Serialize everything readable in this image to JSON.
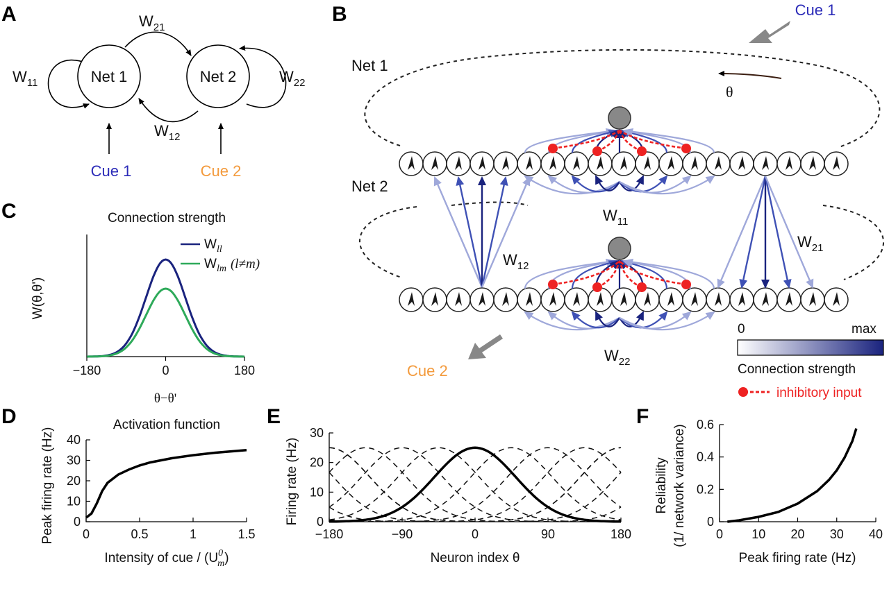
{
  "panels": {
    "A": {
      "letter": "A",
      "net1": "Net 1",
      "net2": "Net 2",
      "w11": "W11",
      "w21": "W21",
      "w12": "W12",
      "w22": "W22",
      "cue1": "Cue 1",
      "cue2": "Cue 2"
    },
    "B": {
      "letter": "B",
      "net1": "Net 1",
      "net2": "Net 2",
      "theta": "θ",
      "cue1": "Cue 1",
      "cue2": "Cue 2",
      "w11": "W11",
      "w12": "W12",
      "w21": "W21",
      "w22": "W22",
      "colorbar_min": "0",
      "colorbar_max": "max",
      "colorbar_label": "Connection strength",
      "inhibitory_label": "inhibitory input"
    },
    "C": {
      "letter": "C",
      "title": "Connection strength",
      "ylabel": "W(θ,θ')",
      "xlabel": "θ−θ'",
      "legend_ll": "W",
      "legend_ll_sub": "ll",
      "legend_lm": "W",
      "legend_lm_sub": "lm",
      "legend_lm_cond": "(l≠m)"
    },
    "D": {
      "letter": "D"
    },
    "E": {
      "letter": "E"
    },
    "F": {
      "letter": "F"
    }
  },
  "colors": {
    "cue1": "#2b2bb8",
    "cue2": "#f39a3c",
    "strong": "#1a237e",
    "weak": "#9fa8da",
    "inhibitory": "#ee2222",
    "green": "#2eaa5a"
  },
  "chart_data": [
    {
      "id": "C",
      "type": "line",
      "title": "Connection strength",
      "xlabel": "θ−θ'",
      "ylabel": "W(θ,θ')",
      "xlim": [
        -180,
        180
      ],
      "xticks": [
        "−180",
        "0",
        "180"
      ],
      "series": [
        {
          "name": "Wll",
          "amplitude": 1.0,
          "width_deg": 45,
          "color": "#1a237e"
        },
        {
          "name": "Wlm (l≠m)",
          "amplitude": 0.7,
          "width_deg": 45,
          "color": "#2eaa5a"
        }
      ]
    },
    {
      "id": "D",
      "type": "line",
      "title": "Activation function",
      "xlabel": "Intensity of cue / (U",
      "xlabel_sup": "0",
      "xlabel_sub": "m",
      "xlabel_end": ")",
      "ylabel": "Peak firing rate  (Hz)",
      "xlim": [
        0,
        1.5
      ],
      "ylim": [
        0,
        40
      ],
      "xticks": [
        "0",
        "0.5",
        "1",
        "1.5"
      ],
      "yticks": [
        "0",
        "10",
        "20",
        "30",
        "40"
      ],
      "x": [
        0,
        0.05,
        0.1,
        0.15,
        0.2,
        0.3,
        0.4,
        0.5,
        0.6,
        0.8,
        1.0,
        1.2,
        1.5
      ],
      "y": [
        2,
        4,
        9,
        15,
        19,
        23,
        25.5,
        27.5,
        29,
        31,
        32.5,
        33.7,
        35
      ]
    },
    {
      "id": "E",
      "type": "line",
      "xlabel": "Neuron index θ",
      "ylabel": "Firing rate (Hz)",
      "xlim": [
        -180,
        180
      ],
      "ylim": [
        0,
        30
      ],
      "xticks": [
        "−180",
        "−90",
        "0",
        "90",
        "180"
      ],
      "yticks": [
        "0",
        "10",
        "20",
        "30"
      ],
      "peak": 25,
      "width_deg": 50,
      "dashed_centers": [
        -180,
        -135,
        -90,
        -45,
        45,
        90,
        135,
        180
      ]
    },
    {
      "id": "F",
      "type": "line",
      "xlabel": "Peak firing rate (Hz)",
      "ylabel": "Reliability",
      "ylabel2": "(1/ network variance)",
      "xlim": [
        0,
        40
      ],
      "ylim": [
        0,
        0.7
      ],
      "xticks": [
        "0",
        "10",
        "20",
        "30",
        "40"
      ],
      "yticks": [
        "0",
        "0.2",
        "0.4",
        "0.6"
      ],
      "x": [
        2,
        5,
        10,
        15,
        20,
        25,
        28,
        30,
        32,
        34,
        35
      ],
      "y": [
        0.0,
        0.01,
        0.035,
        0.07,
        0.13,
        0.22,
        0.3,
        0.37,
        0.46,
        0.58,
        0.67
      ]
    }
  ]
}
